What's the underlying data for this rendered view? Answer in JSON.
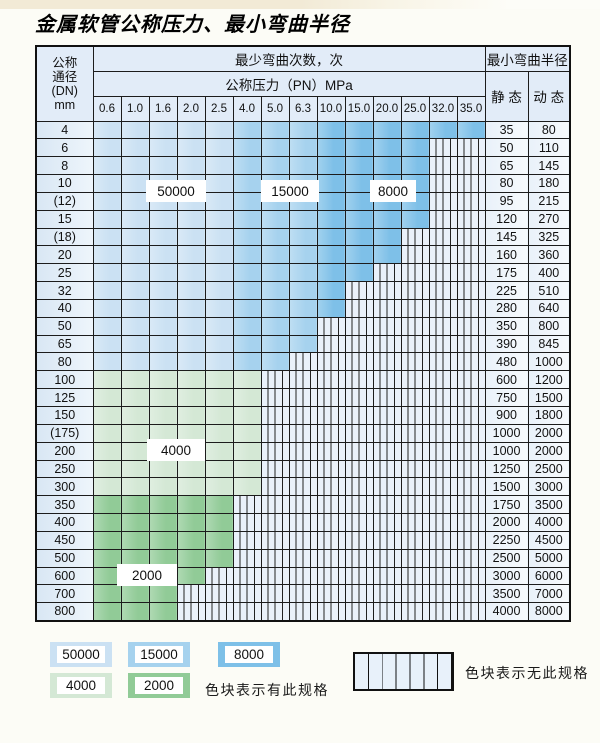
{
  "title": "金属软管公称压力、最小弯曲半径",
  "table": {
    "header": {
      "dn_lines": [
        "公称",
        "通径",
        "(DN)",
        "mm"
      ],
      "cycles_title": "最少弯曲次数，次",
      "pressure_title": "公称压力（PN）MPa",
      "radius_title": "最小弯曲半径",
      "static_label": "静 态",
      "dynamic_label": "动 态",
      "pressures": [
        "0.6",
        "1.0",
        "1.6",
        "2.0",
        "2.5",
        "4.0",
        "5.0",
        "6.3",
        "10.0",
        "15.0",
        "20.0",
        "25.0",
        "32.0",
        "35.0"
      ]
    },
    "color_zones": {
      "blue_bands": [
        {
          "cycles": "50000",
          "columns": [
            "0.6",
            "1.0",
            "1.6",
            "2.0",
            "2.5"
          ],
          "color": "#cbe1f3"
        },
        {
          "cycles": "15000",
          "columns": [
            "4.0",
            "5.0",
            "6.3"
          ],
          "color": "#a6d2ee"
        },
        {
          "cycles": "8000",
          "columns": [
            "10.0",
            "15.0",
            "20.0",
            "25.0",
            "32.0",
            "35.0"
          ],
          "color": "#7ec0e8"
        }
      ],
      "green_bands": [
        {
          "cycles": "4000",
          "color": "#d4e8d5"
        },
        {
          "cycles": "2000",
          "color": "#91cb97"
        }
      ],
      "hatch_fill": "#eaf1fa"
    },
    "rows": [
      {
        "dn": "4",
        "colored_through": "35.0",
        "band": "blue",
        "static": "35",
        "dynamic": "80"
      },
      {
        "dn": "6",
        "colored_through": "25.0",
        "band": "blue",
        "static": "50",
        "dynamic": "110"
      },
      {
        "dn": "8",
        "colored_through": "25.0",
        "band": "blue",
        "static": "65",
        "dynamic": "145"
      },
      {
        "dn": "10",
        "colored_through": "25.0",
        "band": "blue",
        "static": "80",
        "dynamic": "180"
      },
      {
        "dn": "(12)",
        "colored_through": "25.0",
        "band": "blue",
        "static": "95",
        "dynamic": "215"
      },
      {
        "dn": "15",
        "colored_through": "25.0",
        "band": "blue",
        "static": "120",
        "dynamic": "270"
      },
      {
        "dn": "(18)",
        "colored_through": "20.0",
        "band": "blue",
        "static": "145",
        "dynamic": "325"
      },
      {
        "dn": "20",
        "colored_through": "20.0",
        "band": "blue",
        "static": "160",
        "dynamic": "360"
      },
      {
        "dn": "25",
        "colored_through": "15.0",
        "band": "blue",
        "static": "175",
        "dynamic": "400"
      },
      {
        "dn": "32",
        "colored_through": "10.0",
        "band": "blue",
        "static": "225",
        "dynamic": "510"
      },
      {
        "dn": "40",
        "colored_through": "10.0",
        "band": "blue",
        "static": "280",
        "dynamic": "640"
      },
      {
        "dn": "50",
        "colored_through": "6.3",
        "band": "blue",
        "static": "350",
        "dynamic": "800"
      },
      {
        "dn": "65",
        "colored_through": "6.3",
        "band": "blue",
        "static": "390",
        "dynamic": "845"
      },
      {
        "dn": "80",
        "colored_through": "5.0",
        "band": "blue",
        "static": "480",
        "dynamic": "1000"
      },
      {
        "dn": "100",
        "colored_through": "4.0",
        "band": "4000",
        "static": "600",
        "dynamic": "1200"
      },
      {
        "dn": "125",
        "colored_through": "4.0",
        "band": "4000",
        "static": "750",
        "dynamic": "1500"
      },
      {
        "dn": "150",
        "colored_through": "4.0",
        "band": "4000",
        "static": "900",
        "dynamic": "1800"
      },
      {
        "dn": "(175)",
        "colored_through": "4.0",
        "band": "4000",
        "static": "1000",
        "dynamic": "2000"
      },
      {
        "dn": "200",
        "colored_through": "4.0",
        "band": "4000",
        "static": "1000",
        "dynamic": "2000"
      },
      {
        "dn": "250",
        "colored_through": "4.0",
        "band": "4000",
        "static": "1250",
        "dynamic": "2500"
      },
      {
        "dn": "300",
        "colored_through": "4.0",
        "band": "4000",
        "static": "1500",
        "dynamic": "3000"
      },
      {
        "dn": "350",
        "colored_through": "2.5",
        "band": "2000",
        "static": "1750",
        "dynamic": "3500"
      },
      {
        "dn": "400",
        "colored_through": "2.5",
        "band": "2000",
        "static": "2000",
        "dynamic": "4000"
      },
      {
        "dn": "450",
        "colored_through": "2.5",
        "band": "2000",
        "static": "2250",
        "dynamic": "4500"
      },
      {
        "dn": "500",
        "colored_through": "2.5",
        "band": "2000",
        "static": "2500",
        "dynamic": "5000"
      },
      {
        "dn": "600",
        "colored_through": "2.0",
        "band": "2000",
        "static": "3000",
        "dynamic": "6000"
      },
      {
        "dn": "700",
        "colored_through": "1.6",
        "band": "2000",
        "static": "3500",
        "dynamic": "7000"
      },
      {
        "dn": "800",
        "colored_through": "1.6",
        "band": "2000",
        "static": "4000",
        "dynamic": "8000"
      }
    ],
    "overlay_labels": [
      {
        "text": "50000"
      },
      {
        "text": "15000"
      },
      {
        "text": "8000"
      },
      {
        "text": "4000"
      },
      {
        "text": "2000"
      }
    ]
  },
  "legend": {
    "present": [
      {
        "label": "50000",
        "color": "#cbe1f3"
      },
      {
        "label": "15000",
        "color": "#a6d2ee"
      },
      {
        "label": "8000",
        "color": "#7ec0e8"
      },
      {
        "label": "4000",
        "color": "#d4e8d5"
      },
      {
        "label": "2000",
        "color": "#91cb97"
      }
    ],
    "present_note": "色块表示有此规格",
    "absent_note": "色块表示无此规格",
    "absent_fill": "#e8f1fa"
  }
}
